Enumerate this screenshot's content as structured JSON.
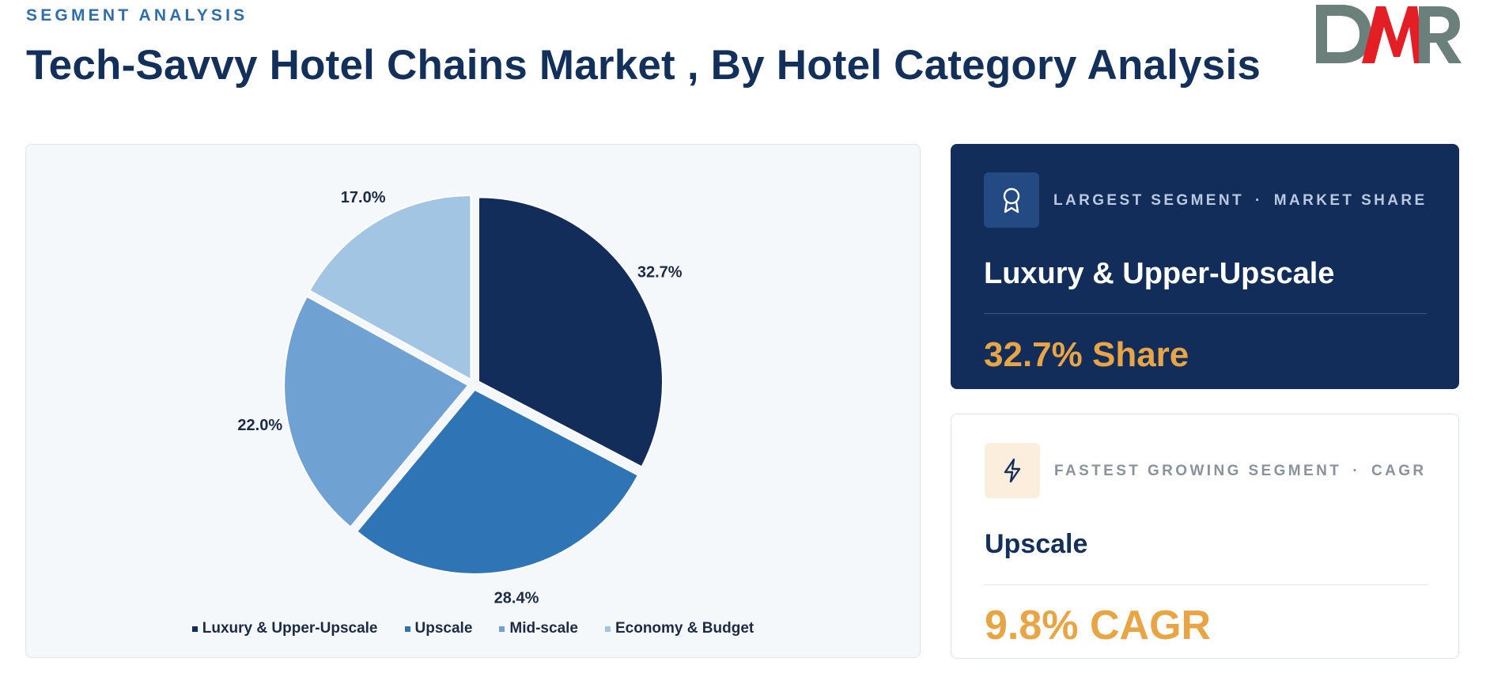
{
  "header": {
    "eyebrow": "SEGMENT ANALYSIS",
    "title": "Tech-Savvy Hotel Chains Market , By Hotel Category Analysis",
    "logo_text": "DMR"
  },
  "colors": {
    "luxury": "#122d5a",
    "upscale": "#2f75b5",
    "midscale": "#6fa2d2",
    "economy": "#a3c5e4",
    "accent": "#e8a545",
    "logo_grey": "#6b7f7b",
    "logo_red": "#e31e24"
  },
  "chart_data": {
    "type": "pie",
    "categories": [
      "Luxury & Upper-Upscale",
      "Upscale",
      "Mid-scale",
      "Economy & Budget"
    ],
    "values": [
      32.7,
      28.4,
      22.0,
      17.0
    ],
    "labels": [
      "32.7%",
      "28.4%",
      "22.0%",
      "17.0%"
    ],
    "legend_position": "bottom",
    "exploded": true
  },
  "kpis": {
    "largest": {
      "icon": "award-icon",
      "heading_left": "LARGEST SEGMENT",
      "separator": "·",
      "heading_right": "MARKET SHARE",
      "segment": "Luxury & Upper-Upscale",
      "value": "32.7% Share"
    },
    "fastest": {
      "icon": "lightning-icon",
      "heading_left": "FASTEST GROWING SEGMENT",
      "separator": "·",
      "heading_right": "CAGR",
      "segment": "Upscale",
      "value": "9.8% CAGR"
    }
  }
}
